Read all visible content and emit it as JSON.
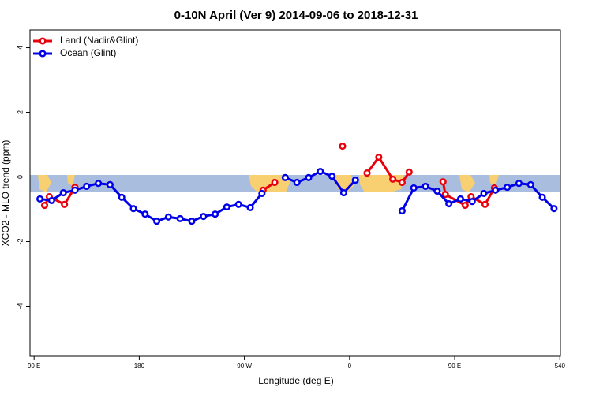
{
  "chart_data": {
    "type": "line",
    "title": "0-10N April (Ver 9)   2014-09-06 to 2018-12-31",
    "x_label": "Longitude (deg E)",
    "y_label": "XCO2 - MLO trend (ppm)",
    "xlim": [
      86.5,
      540.5
    ],
    "ylim": [
      -5.55,
      4.55
    ],
    "xticks": [
      {
        "value": 90,
        "label": "90 E"
      },
      180,
      {
        "value": 270,
        "label": "90 W"
      },
      {
        "value": 360,
        "label": "0"
      },
      {
        "value": 450,
        "label": "90 E"
      },
      540
    ],
    "yticks": [
      -4,
      -2,
      0,
      2,
      4
    ],
    "legend": "top-left",
    "series": [
      {
        "name": "Land (Nadir&Glint)",
        "color": "#e8000b",
        "x": [
          99,
          103,
          116,
          125,
          null,
          286,
          296,
          null,
          354,
          null,
          375,
          385,
          397,
          405,
          411,
          null,
          440,
          442,
          459,
          464,
          476,
          484
        ],
        "values": [
          -0.88,
          -0.61,
          -0.85,
          -0.32,
          null,
          -0.41,
          -0.17,
          null,
          0.95,
          null,
          0.12,
          0.61,
          -0.07,
          -0.17,
          0.15,
          null,
          -0.15,
          -0.54,
          -0.88,
          -0.61,
          -0.85,
          -0.34
        ]
      },
      {
        "name": "Ocean (Glint)",
        "color": "#0000e8",
        "x": [
          95,
          105,
          115,
          125,
          135,
          145,
          155,
          165,
          175,
          185,
          195,
          205,
          215,
          225,
          235,
          245,
          255,
          265,
          275,
          285,
          null,
          305,
          315,
          325,
          335,
          345,
          355,
          365,
          null,
          405,
          415,
          425,
          435,
          445,
          455,
          465,
          475,
          485,
          495,
          505,
          515,
          525,
          535
        ],
        "values": [
          -0.68,
          -0.73,
          -0.49,
          -0.41,
          -0.29,
          -0.2,
          -0.24,
          -0.63,
          -0.98,
          -1.15,
          -1.37,
          -1.24,
          -1.29,
          -1.37,
          -1.22,
          -1.15,
          -0.93,
          -0.85,
          -0.95,
          -0.51,
          null,
          -0.02,
          -0.17,
          -0.02,
          0.17,
          0.02,
          -0.49,
          -0.1,
          null,
          -1.05,
          -0.34,
          -0.29,
          -0.44,
          -0.83,
          -0.68,
          -0.76,
          -0.51,
          -0.41,
          -0.32,
          -0.2,
          -0.24,
          -0.63,
          -0.98
        ]
      }
    ]
  }
}
